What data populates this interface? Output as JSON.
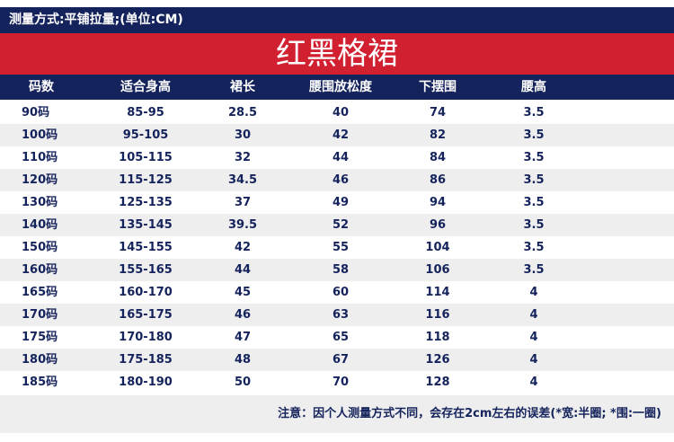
{
  "topbar": {
    "text": "测量方式:平铺拉量;(单位:CM)"
  },
  "title": "红黑格裙",
  "table": {
    "headers": [
      "码数",
      "适合身高",
      "裙长",
      "腰围放松度",
      "下摆围",
      "腰高"
    ],
    "rows": [
      [
        "90码",
        "85-95",
        "28.5",
        "40",
        "74",
        "3.5"
      ],
      [
        "100码",
        "95-105",
        "30",
        "42",
        "82",
        "3.5"
      ],
      [
        "110码",
        "105-115",
        "32",
        "44",
        "84",
        "3.5"
      ],
      [
        "120码",
        "115-125",
        "34.5",
        "46",
        "86",
        "3.5"
      ],
      [
        "130码",
        "125-135",
        "37",
        "49",
        "94",
        "3.5"
      ],
      [
        "140码",
        "135-145",
        "39.5",
        "52",
        "96",
        "3.5"
      ],
      [
        "150码",
        "145-155",
        "42",
        "55",
        "104",
        "3.5"
      ],
      [
        "160码",
        "155-165",
        "44",
        "58",
        "106",
        "3.5"
      ],
      [
        "165码",
        "160-170",
        "45",
        "60",
        "114",
        "4"
      ],
      [
        "170码",
        "165-175",
        "46",
        "63",
        "116",
        "4"
      ],
      [
        "175码",
        "170-180",
        "47",
        "65",
        "118",
        "4"
      ],
      [
        "180码",
        "175-185",
        "48",
        "67",
        "126",
        "4"
      ],
      [
        "185码",
        "180-190",
        "50",
        "70",
        "128",
        "4"
      ]
    ]
  },
  "footer": {
    "note": "注意：因个人测量方式不同，会存在2cm左右的误差(*宽:半圈; *围:一圈)"
  },
  "colors": {
    "navy": "#15235c",
    "red": "#d1202f",
    "stripe": "#eeeeee"
  }
}
